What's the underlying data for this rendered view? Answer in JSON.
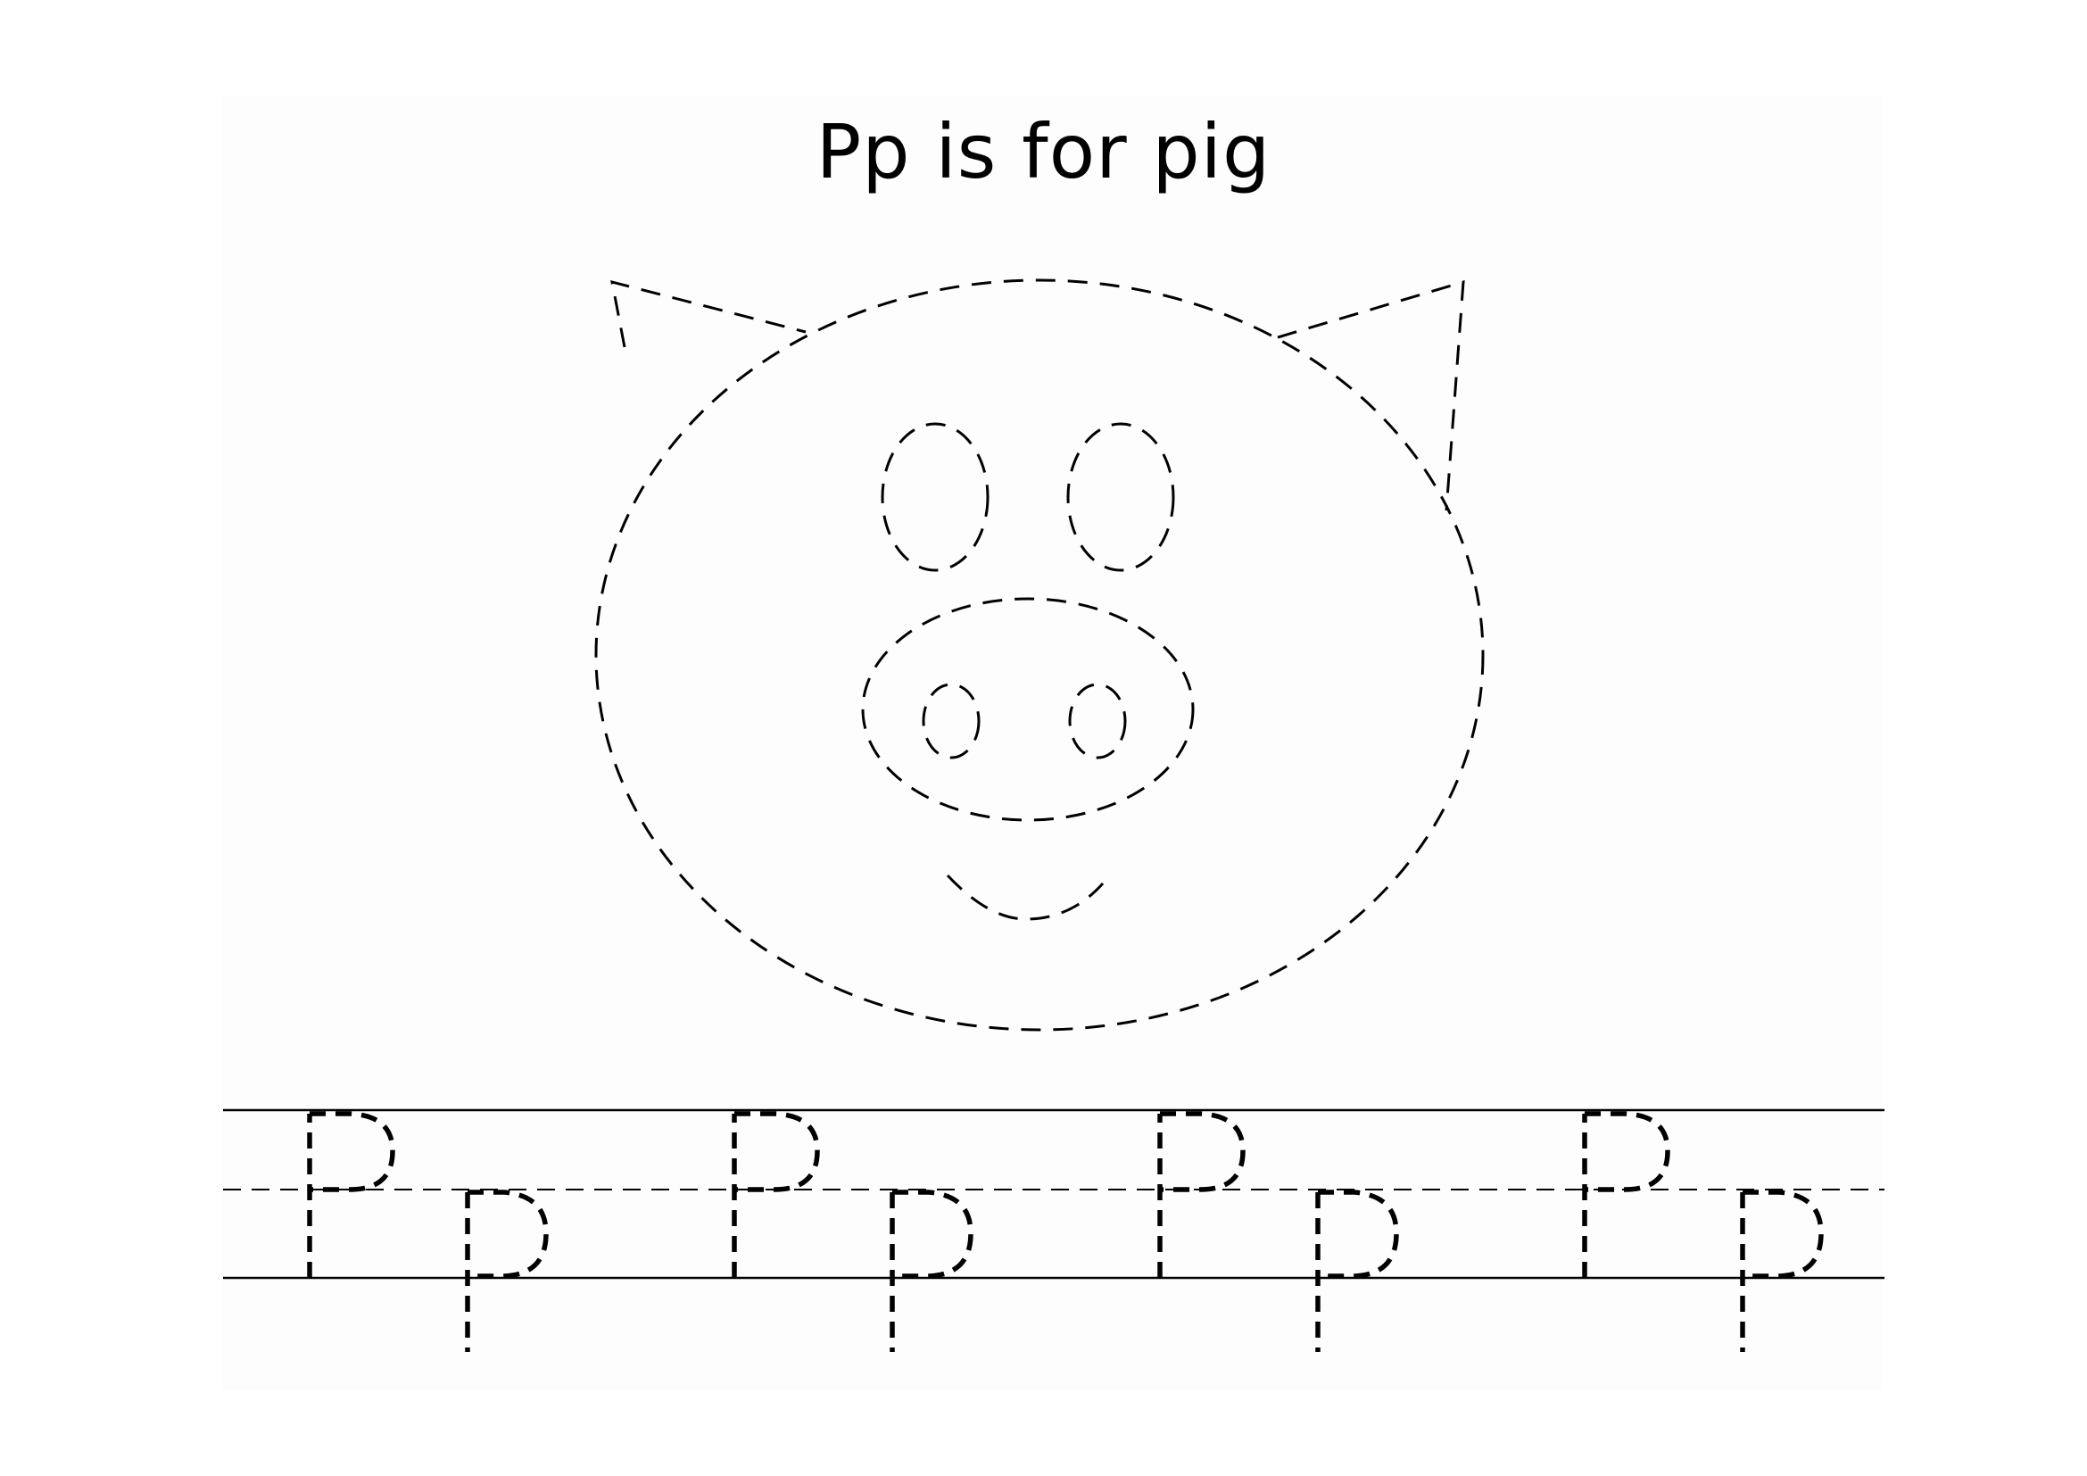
{
  "worksheet": {
    "title": "Pp is for pig",
    "picture_icon": "pig-face-icon",
    "tracing_letters": [
      "P",
      "p",
      "P",
      "p",
      "P",
      "p",
      "P",
      "p"
    ]
  },
  "colors": {
    "ink": "#000000",
    "paper": "#fdfdfd",
    "background": "#ffffff"
  }
}
